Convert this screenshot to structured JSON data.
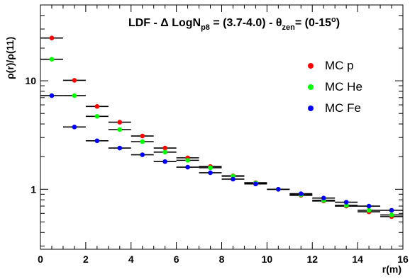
{
  "chart_data": {
    "type": "scatter",
    "title_parts": {
      "pre": "LDF - Δ LogN",
      "sub1": "p8",
      "mid": " = (3.7-4.0) - θ",
      "sub2": "zen",
      "post": "= (0-15",
      "sup": "o",
      "end": ")"
    },
    "xlabel": "r(m)",
    "ylabel": "ρ(r)/ρ(11)",
    "xlim": [
      0,
      16
    ],
    "ylim_log": [
      0.28,
      50
    ],
    "y_scale": "log",
    "x_ticks": [
      "0",
      "2",
      "4",
      "6",
      "8",
      "10",
      "12",
      "14",
      "16"
    ],
    "y_tick_labels": [
      {
        "value": 1,
        "label": "1"
      },
      {
        "value": 10,
        "label": "10"
      }
    ],
    "legend_position": "top-right",
    "series": [
      {
        "name": "MC p",
        "color": "#ff0000",
        "x": [
          0.5,
          1.5,
          2.5,
          3.5,
          4.5,
          5.5,
          6.5,
          7.5,
          8.5,
          9.5,
          10.5,
          11.5,
          12.5,
          13.5,
          14.5,
          15.5
        ],
        "y": [
          24.8,
          10.1,
          5.8,
          4.15,
          3.1,
          2.4,
          1.95,
          1.62,
          1.33,
          1.15,
          1.0,
          0.88,
          0.78,
          0.7,
          0.62,
          0.56
        ]
      },
      {
        "name": "MC He",
        "color": "#00ff00",
        "x": [
          0.5,
          1.5,
          2.5,
          3.5,
          4.5,
          5.5,
          6.5,
          7.5,
          8.5,
          9.5,
          10.5,
          11.5,
          12.5,
          13.5,
          14.5,
          15.5
        ],
        "y": [
          15.8,
          7.3,
          4.7,
          3.55,
          2.75,
          2.2,
          1.85,
          1.58,
          1.32,
          1.14,
          1.0,
          0.89,
          0.79,
          0.71,
          0.64,
          0.58
        ]
      },
      {
        "name": "MC Fe",
        "color": "#0000ff",
        "x": [
          0.5,
          1.5,
          2.5,
          3.5,
          4.5,
          5.5,
          6.5,
          7.5,
          8.5,
          9.5,
          10.5,
          11.5,
          12.5,
          13.5,
          14.5,
          15.5
        ],
        "y": [
          7.3,
          3.75,
          2.8,
          2.4,
          2.08,
          1.8,
          1.6,
          1.42,
          1.24,
          1.12,
          1.0,
          0.91,
          0.83,
          0.76,
          0.7,
          0.64
        ]
      }
    ]
  }
}
